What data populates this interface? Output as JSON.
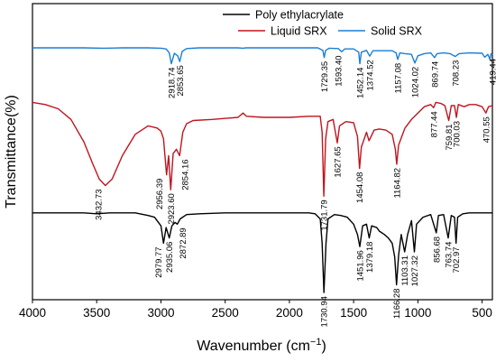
{
  "chart_data": {
    "type": "line",
    "xlabel": "Wavenumber (cm",
    "xlabel_sup": "−1",
    "xlabel_end": ")",
    "ylabel": "Transmittance(%)",
    "xlim": [
      4000,
      420
    ],
    "x_reversed": true,
    "y_axis_ticks": false,
    "grid": false,
    "x_ticks": [
      "4000",
      "3500",
      "3000",
      "2500",
      "2000",
      "1500",
      "1000",
      "500"
    ],
    "x_tick_values": [
      4000,
      3500,
      3000,
      2500,
      2000,
      1500,
      1000,
      500
    ],
    "legend": {
      "placement": "top-right",
      "entries": [
        {
          "name": "Poly ethylacrylate",
          "color": "#000000"
        },
        {
          "name": "Liquid SRX",
          "color": "#c0141e"
        },
        {
          "name": "Solid SRX",
          "color": "#1a7fd4"
        }
      ]
    },
    "series": [
      {
        "name": "Solid SRX",
        "color": "#1a7fd4",
        "points": [
          [
            4000,
            0.2
          ],
          [
            3800,
            0.2
          ],
          [
            3600,
            0.2
          ],
          [
            3450,
            0.21
          ],
          [
            3300,
            0.2
          ],
          [
            3100,
            0.2
          ],
          [
            3000,
            0.21
          ],
          [
            2960,
            0.23
          ],
          [
            2935,
            0.34
          ],
          [
            2918.74,
            0.64
          ],
          [
            2895,
            0.35
          ],
          [
            2870,
            0.42
          ],
          [
            2853.65,
            0.58
          ],
          [
            2835,
            0.3
          ],
          [
            2800,
            0.22
          ],
          [
            2700,
            0.2
          ],
          [
            2400,
            0.2
          ],
          [
            2360,
            0.21
          ],
          [
            2340,
            0.2
          ],
          [
            2000,
            0.2
          ],
          [
            1780,
            0.2
          ],
          [
            1740,
            0.27
          ],
          [
            1729.35,
            0.47
          ],
          [
            1718,
            0.27
          ],
          [
            1690,
            0.21
          ],
          [
            1620,
            0.22
          ],
          [
            1593.4,
            0.31
          ],
          [
            1570,
            0.23
          ],
          [
            1500,
            0.23
          ],
          [
            1460,
            0.32
          ],
          [
            1452.14,
            0.64
          ],
          [
            1440,
            0.32
          ],
          [
            1400,
            0.27
          ],
          [
            1374.52,
            0.43
          ],
          [
            1350,
            0.28
          ],
          [
            1300,
            0.28
          ],
          [
            1200,
            0.28
          ],
          [
            1170,
            0.34
          ],
          [
            1157.08,
            0.52
          ],
          [
            1140,
            0.34
          ],
          [
            1100,
            0.36
          ],
          [
            1050,
            0.38
          ],
          [
            1024.02,
            0.62
          ],
          [
            1000,
            0.42
          ],
          [
            950,
            0.36
          ],
          [
            900,
            0.34
          ],
          [
            869.74,
            0.47
          ],
          [
            850,
            0.36
          ],
          [
            800,
            0.34
          ],
          [
            750,
            0.36
          ],
          [
            708.23,
            0.44
          ],
          [
            680,
            0.36
          ],
          [
            600,
            0.34
          ],
          [
            500,
            0.35
          ],
          [
            480,
            0.46
          ],
          [
            455,
            0.38
          ],
          [
            440,
            0.52
          ],
          [
            430,
            0.36
          ],
          [
            420,
            0.4
          ]
        ],
        "peak_labels": [
          [
            2918.74,
            "2918.74"
          ],
          [
            2853.65,
            "2853.65"
          ],
          [
            1729.35,
            "1729.35"
          ],
          [
            1593.4,
            "1593.40"
          ],
          [
            1452.14,
            "1452.14"
          ],
          [
            1374.52,
            "1374.52"
          ],
          [
            1157.08,
            "1157.08"
          ],
          [
            1024.02,
            "1024.02"
          ],
          [
            869.74,
            "869.74"
          ],
          [
            708.23,
            "708.23"
          ],
          [
            419.44,
            "419.44"
          ]
        ]
      },
      {
        "name": "Liquid SRX",
        "color": "#c0141e",
        "points": [
          [
            4000,
            0.08
          ],
          [
            3900,
            0.1
          ],
          [
            3800,
            0.14
          ],
          [
            3700,
            0.24
          ],
          [
            3600,
            0.45
          ],
          [
            3530,
            0.66
          ],
          [
            3480,
            0.8
          ],
          [
            3432.73,
            0.86
          ],
          [
            3380,
            0.8
          ],
          [
            3300,
            0.58
          ],
          [
            3200,
            0.38
          ],
          [
            3100,
            0.3
          ],
          [
            3030,
            0.32
          ],
          [
            3000,
            0.35
          ],
          [
            2980,
            0.42
          ],
          [
            2956.39,
            0.76
          ],
          [
            2940,
            0.58
          ],
          [
            2923.6,
            0.9
          ],
          [
            2905,
            0.56
          ],
          [
            2880,
            0.52
          ],
          [
            2854.16,
            0.58
          ],
          [
            2830,
            0.36
          ],
          [
            2800,
            0.28
          ],
          [
            2750,
            0.25
          ],
          [
            2600,
            0.24
          ],
          [
            2400,
            0.22
          ],
          [
            2360,
            0.18
          ],
          [
            2335,
            0.21
          ],
          [
            2200,
            0.22
          ],
          [
            2000,
            0.22
          ],
          [
            1850,
            0.21
          ],
          [
            1760,
            0.21
          ],
          [
            1745,
            0.36
          ],
          [
            1731.79,
            0.96
          ],
          [
            1718,
            0.42
          ],
          [
            1700,
            0.26
          ],
          [
            1660,
            0.24
          ],
          [
            1627.65,
            0.46
          ],
          [
            1610,
            0.3
          ],
          [
            1560,
            0.26
          ],
          [
            1500,
            0.27
          ],
          [
            1470,
            0.4
          ],
          [
            1454.08,
            0.7
          ],
          [
            1440,
            0.5
          ],
          [
            1400,
            0.36
          ],
          [
            1380,
            0.44
          ],
          [
            1340,
            0.34
          ],
          [
            1300,
            0.33
          ],
          [
            1250,
            0.34
          ],
          [
            1200,
            0.38
          ],
          [
            1175,
            0.52
          ],
          [
            1164.82,
            0.66
          ],
          [
            1150,
            0.48
          ],
          [
            1100,
            0.32
          ],
          [
            1050,
            0.24
          ],
          [
            1000,
            0.18
          ],
          [
            950,
            0.12
          ],
          [
            900,
            0.1
          ],
          [
            877.44,
            0.13
          ],
          [
            860,
            0.08
          ],
          [
            820,
            0.09
          ],
          [
            790,
            0.11
          ],
          [
            759.81,
            0.25
          ],
          [
            740,
            0.11
          ],
          [
            715,
            0.11
          ],
          [
            700.03,
            0.22
          ],
          [
            685,
            0.1
          ],
          [
            640,
            0.12
          ],
          [
            600,
            0.1
          ],
          [
            550,
            0.1
          ],
          [
            500,
            0.12
          ],
          [
            470.55,
            0.18
          ],
          [
            450,
            0.12
          ],
          [
            420,
            0.11
          ]
        ],
        "peak_labels": [
          [
            3432.73,
            "3432.73"
          ],
          [
            2956.39,
            "2956.39"
          ],
          [
            2923.6,
            "2923.60"
          ],
          [
            2854.16,
            "2854.16"
          ],
          [
            1731.79,
            "1731.79"
          ],
          [
            1627.65,
            "1627.65"
          ],
          [
            1454.08,
            "1454.08"
          ],
          [
            1164.82,
            "1164.82"
          ],
          [
            877.44,
            "877.44"
          ],
          [
            759.81,
            "759.81"
          ],
          [
            700.03,
            "700.03"
          ],
          [
            470.55,
            "470.55"
          ]
        ]
      },
      {
        "name": "Poly ethylacrylate",
        "color": "#000000",
        "points": [
          [
            4000,
            0.05
          ],
          [
            3800,
            0.05
          ],
          [
            3600,
            0.05
          ],
          [
            3500,
            0.06
          ],
          [
            3400,
            0.05
          ],
          [
            3200,
            0.05
          ],
          [
            3100,
            0.08
          ],
          [
            3050,
            0.1
          ],
          [
            3000,
            0.2
          ],
          [
            2979.77,
            0.4
          ],
          [
            2960,
            0.22
          ],
          [
            2935.06,
            0.34
          ],
          [
            2915,
            0.2
          ],
          [
            2890,
            0.16
          ],
          [
            2872.89,
            0.18
          ],
          [
            2850,
            0.12
          ],
          [
            2800,
            0.07
          ],
          [
            2700,
            0.06
          ],
          [
            2500,
            0.05
          ],
          [
            2300,
            0.05
          ],
          [
            2000,
            0.05
          ],
          [
            1850,
            0.05
          ],
          [
            1800,
            0.06
          ],
          [
            1760,
            0.12
          ],
          [
            1745,
            0.4
          ],
          [
            1730.94,
            0.97
          ],
          [
            1715,
            0.4
          ],
          [
            1700,
            0.12
          ],
          [
            1650,
            0.07
          ],
          [
            1600,
            0.08
          ],
          [
            1550,
            0.1
          ],
          [
            1500,
            0.18
          ],
          [
            1470,
            0.3
          ],
          [
            1451.96,
            0.44
          ],
          [
            1430,
            0.2
          ],
          [
            1400,
            0.18
          ],
          [
            1379.18,
            0.34
          ],
          [
            1360,
            0.2
          ],
          [
            1320,
            0.22
          ],
          [
            1300,
            0.26
          ],
          [
            1260,
            0.3
          ],
          [
            1230,
            0.34
          ],
          [
            1200,
            0.4
          ],
          [
            1180,
            0.56
          ],
          [
            1166.28,
            0.88
          ],
          [
            1150,
            0.54
          ],
          [
            1130,
            0.3
          ],
          [
            1103.31,
            0.5
          ],
          [
            1080,
            0.3
          ],
          [
            1050,
            0.14
          ],
          [
            1027.32,
            0.5
          ],
          [
            1010,
            0.18
          ],
          [
            960,
            0.1
          ],
          [
            900,
            0.07
          ],
          [
            856.68,
            0.28
          ],
          [
            840,
            0.08
          ],
          [
            800,
            0.07
          ],
          [
            763.74,
            0.34
          ],
          [
            740,
            0.08
          ],
          [
            715,
            0.1
          ],
          [
            702.97,
            0.4
          ],
          [
            690,
            0.1
          ],
          [
            650,
            0.06
          ],
          [
            600,
            0.05
          ],
          [
            500,
            0.05
          ],
          [
            420,
            0.05
          ]
        ],
        "peak_labels": [
          [
            2979.77,
            "2979.77"
          ],
          [
            2935.06,
            "2935.06"
          ],
          [
            2872.89,
            "2872.89"
          ],
          [
            1730.94,
            "1730.94"
          ],
          [
            1451.96,
            "1451.96"
          ],
          [
            1379.18,
            "1379.18"
          ],
          [
            1166.28,
            "1166.28"
          ],
          [
            1103.31,
            "1103.31"
          ],
          [
            1027.32,
            "1027.32"
          ],
          [
            856.68,
            "856.68"
          ],
          [
            763.74,
            "763.74"
          ],
          [
            702.97,
            "702.97"
          ]
        ]
      }
    ]
  }
}
